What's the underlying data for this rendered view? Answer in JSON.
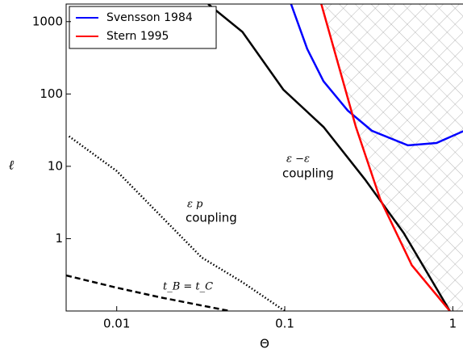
{
  "chart_data": {
    "type": "line",
    "xlabel": "Θ",
    "ylabel": "ℓ",
    "xscale": "log",
    "yscale": "log",
    "xlim": [
      0.005,
      1.15
    ],
    "ylim": [
      0.1,
      1750
    ],
    "xticks": [
      0.01,
      0.1,
      1
    ],
    "yticks": [
      1,
      10,
      100,
      1000
    ],
    "legend": "upper left",
    "series": [
      {
        "name": "Svensson 1984",
        "color": "#0000ff",
        "dash": "solid",
        "x": [
          0.109,
          0.136,
          0.17,
          0.237,
          0.33,
          0.54,
          0.8,
          1.17
        ],
        "values": [
          1750,
          420,
          150,
          59,
          31,
          19.5,
          21,
          31
        ]
      },
      {
        "name": "Stern 1995",
        "color": "#ff0000",
        "dash": "solid",
        "x": [
          0.165,
          0.265,
          0.37,
          0.57,
          0.96
        ],
        "values": [
          1750,
          35,
          3.5,
          0.43,
          0.1
        ]
      }
    ],
    "curves": [
      {
        "color": "#000000",
        "dash": "solid",
        "x": [
          0.035,
          0.056,
          0.098,
          0.17,
          0.3,
          0.51,
          0.96
        ],
        "values": [
          1750,
          720,
          115,
          35,
          6.6,
          1.2,
          0.1
        ]
      },
      {
        "color": "#000000",
        "dash": "dotted",
        "x": [
          0.0052,
          0.01,
          0.032,
          0.056,
          0.1
        ],
        "values": [
          26,
          8.6,
          0.55,
          0.25,
          0.1
        ]
      },
      {
        "color": "#000000",
        "dash": "dashed",
        "x": [
          0.005,
          0.01,
          0.018,
          0.047
        ],
        "values": [
          0.31,
          0.21,
          0.155,
          0.1
        ]
      }
    ],
    "annotations": [
      "ε −ε",
      "coupling",
      "ε   p",
      "coupling",
      "t_B = t_C"
    ]
  }
}
